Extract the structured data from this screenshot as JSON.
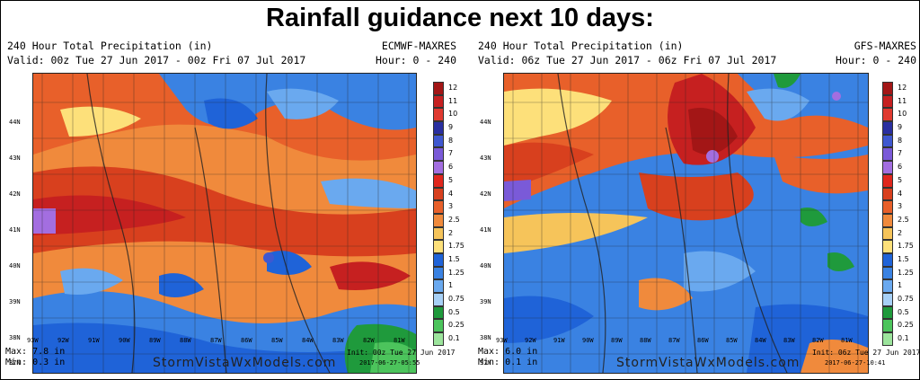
{
  "main_title": "Rainfall guidance next 10 days:",
  "legend": {
    "labels": [
      "12",
      "11",
      "10",
      "9",
      "8",
      "7",
      "6",
      "5",
      "4",
      "3",
      "2.5",
      "2",
      "1.75",
      "1.5",
      "1.25",
      "1",
      "0.75",
      "0.5",
      "0.25",
      "0.1"
    ],
    "colors": [
      "#a31616",
      "#c62020",
      "#e03a30",
      "#2a2fa0",
      "#3f58d0",
      "#7a5ad8",
      "#a36ee0",
      "#e0261c",
      "#d8401e",
      "#e8602a",
      "#f08a3c",
      "#f6c45a",
      "#fde07a",
      "#1f63d8",
      "#3a82e2",
      "#6aa9ef",
      "#a7d0f6",
      "#1f9a3c",
      "#4cc45c",
      "#9ce49c"
    ]
  },
  "lat_labels": [
    "44N",
    "43N",
    "42N",
    "41N",
    "40N",
    "39N",
    "38N",
    "37N"
  ],
  "lon_labels": [
    "93W",
    "92W",
    "91W",
    "90W",
    "89W",
    "88W",
    "87W",
    "86W",
    "85W",
    "84W",
    "83W",
    "82W",
    "81W"
  ],
  "site": "StormVistaWxModels.com",
  "panels": [
    {
      "title": "240 Hour Total Precipitation (in)",
      "model": "ECMWF-MAXRES",
      "valid": "Valid: 00z Tue 27 Jun 2017 - 00z Fri 07 Jul 2017",
      "hour": "Hour: 0 - 240",
      "max": "Max: 7.8 in",
      "min": "Min: 0.3 in",
      "init": "Init: 00z Tue 27 Jun 2017",
      "stamp": "2017-06-27-05:55"
    },
    {
      "title": "240 Hour Total Precipitation (in)",
      "model": "GFS-MAXRES",
      "valid": "Valid: 06z Tue 27 Jun 2017 - 06z Fri 07 Jul 2017",
      "hour": "Hour: 0 - 240",
      "max": "Max: 6.0 in",
      "min": "Min: 0.1 in",
      "init": "Init: 06z Tue 27 Jun 2017",
      "stamp": "2017-06-27-10:41"
    }
  ]
}
